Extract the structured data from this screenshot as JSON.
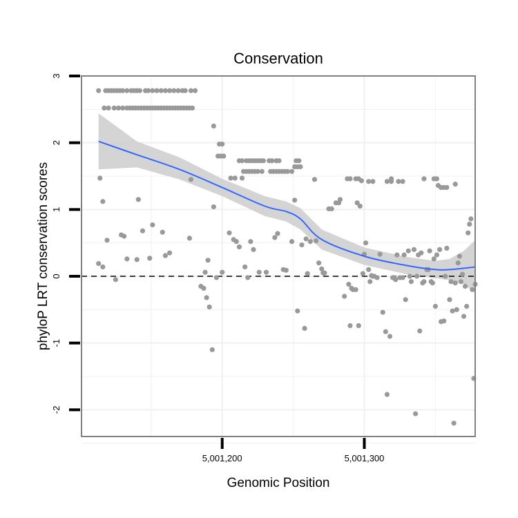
{
  "chart_data": {
    "type": "scatter",
    "title": "Conservation",
    "xlabel": "Genomic Position",
    "ylabel": "phyloP LRT conservation scores",
    "xlim": [
      5001101,
      5001378
    ],
    "ylim": [
      -2.4,
      3.0
    ],
    "x_ticks": [
      5001200,
      5001300
    ],
    "x_tick_labels": [
      "5,001,200",
      "5,001,300"
    ],
    "y_ticks": [
      -2,
      -1,
      0,
      1,
      2,
      3
    ],
    "y_tick_labels": [
      "-2",
      "-1",
      "0",
      "1",
      "2",
      "3"
    ],
    "grid": true,
    "reference_line": {
      "y": 0,
      "style": "dashed"
    },
    "colors": {
      "points": "#999999",
      "smooth_line": "#3366ff",
      "band": "#cccccc",
      "panel_border": "#808080"
    },
    "points": [
      [
        5001113,
        2.78
      ],
      [
        5001118,
        2.78
      ],
      [
        5001120,
        2.78
      ],
      [
        5001122,
        2.78
      ],
      [
        5001124,
        2.78
      ],
      [
        5001126,
        2.78
      ],
      [
        5001128,
        2.78
      ],
      [
        5001130,
        2.78
      ],
      [
        5001133,
        2.78
      ],
      [
        5001136,
        2.78
      ],
      [
        5001138,
        2.78
      ],
      [
        5001140,
        2.78
      ],
      [
        5001142,
        2.78
      ],
      [
        5001146,
        2.78
      ],
      [
        5001148,
        2.78
      ],
      [
        5001151,
        2.78
      ],
      [
        5001154,
        2.78
      ],
      [
        5001157,
        2.78
      ],
      [
        5001160,
        2.78
      ],
      [
        5001163,
        2.78
      ],
      [
        5001166,
        2.78
      ],
      [
        5001169,
        2.78
      ],
      [
        5001172,
        2.78
      ],
      [
        5001174,
        2.78
      ],
      [
        5001178,
        2.78
      ],
      [
        5001181,
        2.78
      ],
      [
        5001117,
        2.52
      ],
      [
        5001120,
        2.52
      ],
      [
        5001124,
        2.52
      ],
      [
        5001127,
        2.52
      ],
      [
        5001130,
        2.52
      ],
      [
        5001133,
        2.52
      ],
      [
        5001135,
        2.52
      ],
      [
        5001137,
        2.52
      ],
      [
        5001139,
        2.52
      ],
      [
        5001141,
        2.52
      ],
      [
        5001143,
        2.52
      ],
      [
        5001145,
        2.52
      ],
      [
        5001147,
        2.52
      ],
      [
        5001149,
        2.52
      ],
      [
        5001151,
        2.52
      ],
      [
        5001153,
        2.52
      ],
      [
        5001155,
        2.52
      ],
      [
        5001157,
        2.52
      ],
      [
        5001159,
        2.52
      ],
      [
        5001161,
        2.52
      ],
      [
        5001163,
        2.52
      ],
      [
        5001165,
        2.52
      ],
      [
        5001167,
        2.52
      ],
      [
        5001169,
        2.52
      ],
      [
        5001171,
        2.52
      ],
      [
        5001173,
        2.52
      ],
      [
        5001175,
        2.52
      ],
      [
        5001177,
        2.52
      ],
      [
        5001179,
        2.52
      ],
      [
        5001194,
        2.25
      ],
      [
        5001198,
        1.98
      ],
      [
        5001200,
        1.98
      ],
      [
        5001197,
        1.8
      ],
      [
        5001199,
        1.8
      ],
      [
        5001201,
        1.8
      ],
      [
        5001212,
        1.73
      ],
      [
        5001214,
        1.73
      ],
      [
        5001217,
        1.73
      ],
      [
        5001219,
        1.73
      ],
      [
        5001221,
        1.73
      ],
      [
        5001223,
        1.73
      ],
      [
        5001225,
        1.73
      ],
      [
        5001227,
        1.73
      ],
      [
        5001229,
        1.73
      ],
      [
        5001233,
        1.73
      ],
      [
        5001235,
        1.73
      ],
      [
        5001238,
        1.73
      ],
      [
        5001240,
        1.73
      ],
      [
        5001252,
        1.73
      ],
      [
        5001254,
        1.73
      ],
      [
        5001206,
        1.47
      ],
      [
        5001209,
        1.47
      ],
      [
        5001215,
        1.57
      ],
      [
        5001217,
        1.57
      ],
      [
        5001219,
        1.57
      ],
      [
        5001221,
        1.57
      ],
      [
        5001223,
        1.57
      ],
      [
        5001225,
        1.57
      ],
      [
        5001228,
        1.57
      ],
      [
        5001234,
        1.57
      ],
      [
        5001236,
        1.57
      ],
      [
        5001238,
        1.57
      ],
      [
        5001240,
        1.57
      ],
      [
        5001242,
        1.57
      ],
      [
        5001244,
        1.57
      ],
      [
        5001246,
        1.57
      ],
      [
        5001251,
        1.64
      ],
      [
        5001253,
        1.64
      ],
      [
        5001255,
        1.64
      ],
      [
        5001249,
        1.57
      ],
      [
        5001178,
        1.45
      ],
      [
        5001265,
        1.45
      ],
      [
        5001288,
        1.46
      ],
      [
        5001290,
        1.46
      ],
      [
        5001294,
        1.46
      ],
      [
        5001296,
        1.46
      ],
      [
        5001298,
        1.43
      ],
      [
        5001303,
        1.42
      ],
      [
        5001306,
        1.42
      ],
      [
        5001316,
        1.42
      ],
      [
        5001319,
        1.42
      ],
      [
        5001324,
        1.42
      ],
      [
        5001327,
        1.42
      ],
      [
        5001342,
        1.46
      ],
      [
        5001349,
        1.46
      ],
      [
        5001351,
        1.46
      ],
      [
        5001352,
        1.36
      ],
      [
        5001354,
        1.33
      ],
      [
        5001356,
        1.33
      ],
      [
        5001358,
        1.33
      ],
      [
        5001364,
        1.38
      ],
      [
        5001114,
        1.47
      ],
      [
        5001116,
        1.12
      ],
      [
        5001141,
        1.15
      ],
      [
        5001119,
        0.54
      ],
      [
        5001129,
        0.62
      ],
      [
        5001131,
        0.6
      ],
      [
        5001144,
        0.68
      ],
      [
        5001151,
        0.77
      ],
      [
        5001158,
        0.66
      ],
      [
        5001177,
        0.57
      ],
      [
        5001125,
        -0.05
      ],
      [
        5001133,
        0.26
      ],
      [
        5001140,
        0.25
      ],
      [
        5001149,
        0.27
      ],
      [
        5001163,
        0.35
      ],
      [
        5001160,
        0.31
      ],
      [
        5001113,
        0.19
      ],
      [
        5001116,
        0.14
      ],
      [
        5001185,
        -0.15
      ],
      [
        5001187,
        -0.18
      ],
      [
        5001189,
        -0.32
      ],
      [
        5001190,
        0.24
      ],
      [
        5001191,
        -0.46
      ],
      [
        5001193,
        -1.1
      ],
      [
        5001194,
        1.04
      ],
      [
        5001196,
        -0.02
      ],
      [
        5001188,
        0.06
      ],
      [
        5001200,
        0.06
      ],
      [
        5001205,
        0.65
      ],
      [
        5001208,
        0.55
      ],
      [
        5001210,
        0.52
      ],
      [
        5001212,
        0.44
      ],
      [
        5001214,
        1.47
      ],
      [
        5001216,
        0.14
      ],
      [
        5001218,
        -0.02
      ],
      [
        5001220,
        0.52
      ],
      [
        5001222,
        0.4
      ],
      [
        5001226,
        0.06
      ],
      [
        5001231,
        0.06
      ],
      [
        5001237,
        0.58
      ],
      [
        5001239,
        0.64
      ],
      [
        5001243,
        0.1
      ],
      [
        5001245,
        0.09
      ],
      [
        5001249,
        0.52
      ],
      [
        5001251,
        1.14
      ],
      [
        5001253,
        -0.52
      ],
      [
        5001256,
        0.47
      ],
      [
        5001258,
        -0.78
      ],
      [
        5001259,
        0.56
      ],
      [
        5001260,
        0.04
      ],
      [
        5001262,
        0.52
      ],
      [
        5001266,
        0.53
      ],
      [
        5001268,
        0.2
      ],
      [
        5001270,
        0.11
      ],
      [
        5001271,
        0.05
      ],
      [
        5001272,
        0.05
      ],
      [
        5001275,
        1.01
      ],
      [
        5001277,
        1.01
      ],
      [
        5001280,
        1.1
      ],
      [
        5001282,
        1.1
      ],
      [
        5001283,
        1.15
      ],
      [
        5001286,
        -0.3
      ],
      [
        5001289,
        -0.12
      ],
      [
        5001291,
        -0.18
      ],
      [
        5001292,
        -0.2
      ],
      [
        5001294,
        -0.2
      ],
      [
        5001295,
        1.1
      ],
      [
        5001297,
        1.05
      ],
      [
        5001299,
        0.04
      ],
      [
        5001300,
        0.33
      ],
      [
        5001290,
        -0.74
      ],
      [
        5001296,
        -0.74
      ],
      [
        5001301,
        0.5
      ],
      [
        5001303,
        0.1
      ],
      [
        5001305,
        0.01
      ],
      [
        5001307,
        0.0
      ],
      [
        5001309,
        -0.02
      ],
      [
        5001311,
        0.33
      ],
      [
        5001313,
        -0.54
      ],
      [
        5001315,
        -0.83
      ],
      [
        5001316,
        -1.77
      ],
      [
        5001318,
        -0.9
      ],
      [
        5001319,
        1.46
      ],
      [
        5001320,
        -0.02
      ],
      [
        5001321,
        -0.02
      ],
      [
        5001323,
        0.32
      ],
      [
        5001325,
        -0.02
      ],
      [
        5001327,
        -0.02
      ],
      [
        5001328,
        0.32
      ],
      [
        5001329,
        -0.35
      ],
      [
        5001331,
        0.38
      ],
      [
        5001333,
        -0.08
      ],
      [
        5001335,
        0.4
      ],
      [
        5001336,
        -2.06
      ],
      [
        5001338,
        0.32
      ],
      [
        5001339,
        -0.82
      ],
      [
        5001340,
        0.35
      ],
      [
        5001341,
        -0.1
      ],
      [
        5001342,
        -0.08
      ],
      [
        5001344,
        0.1
      ],
      [
        5001346,
        0.38
      ],
      [
        5001347,
        -0.08
      ],
      [
        5001349,
        0.26
      ],
      [
        5001350,
        -0.45
      ],
      [
        5001351,
        0.32
      ],
      [
        5001353,
        0.4
      ],
      [
        5001354,
        -0.68
      ],
      [
        5001356,
        -0.67
      ],
      [
        5001357,
        0.0
      ],
      [
        5001358,
        0.42
      ],
      [
        5001360,
        -0.35
      ],
      [
        5001361,
        -0.08
      ],
      [
        5001362,
        -0.52
      ],
      [
        5001363,
        -2.2
      ],
      [
        5001365,
        -0.5
      ],
      [
        5001366,
        0.2
      ],
      [
        5001367,
        0.3
      ],
      [
        5001369,
        0.03
      ],
      [
        5001370,
        -0.6
      ],
      [
        5001371,
        -0.15
      ],
      [
        5001372,
        -0.45
      ],
      [
        5001373,
        0.65
      ],
      [
        5001374,
        0.78
      ],
      [
        5001375,
        0.86
      ],
      [
        5001376,
        -0.2
      ],
      [
        5001377,
        -1.53
      ],
      [
        5001378,
        -0.12
      ],
      [
        5001364,
        -0.1
      ],
      [
        5001368,
        -0.08
      ],
      [
        5001345,
        0.1
      ],
      [
        5001348,
        -0.1
      ],
      [
        5001332,
        0.0
      ],
      [
        5001337,
        0.0
      ],
      [
        5001304,
        -0.08
      ],
      [
        5001306,
        0.0
      ],
      [
        5001322,
        -0.05
      ]
    ],
    "smooth": {
      "x": [
        5001113,
        5001140,
        5001170,
        5001200,
        5001230,
        5001245,
        5001255,
        5001270,
        5001300,
        5001330,
        5001350,
        5001360,
        5001370,
        5001378
      ],
      "y": [
        2.02,
        1.82,
        1.6,
        1.33,
        1.05,
        0.97,
        0.86,
        0.55,
        0.3,
        0.16,
        0.1,
        0.1,
        0.12,
        0.14
      ],
      "lower": [
        1.6,
        1.63,
        1.45,
        1.2,
        0.9,
        0.82,
        0.7,
        0.4,
        0.17,
        0.03,
        -0.03,
        -0.06,
        -0.12,
        -0.25
      ],
      "upper": [
        2.44,
        2.02,
        1.78,
        1.46,
        1.2,
        1.12,
        1.02,
        0.7,
        0.43,
        0.29,
        0.23,
        0.26,
        0.38,
        0.54
      ]
    }
  }
}
